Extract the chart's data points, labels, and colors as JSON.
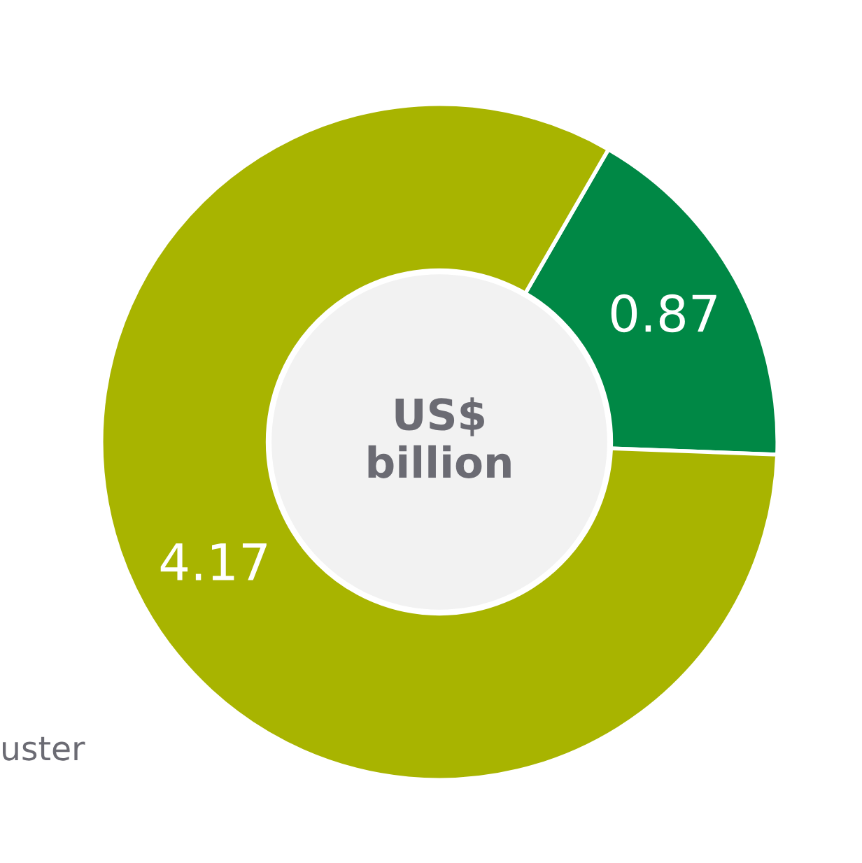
{
  "chart_data": {
    "type": "donut",
    "title": "US$ billion",
    "categories": [
      null,
      null
    ],
    "values": [
      0.87,
      4.17
    ],
    "colors": [
      "#008845",
      "#a8b400"
    ],
    "data_labels": true,
    "legend": false,
    "annotations": [
      "uster"
    ]
  }
}
